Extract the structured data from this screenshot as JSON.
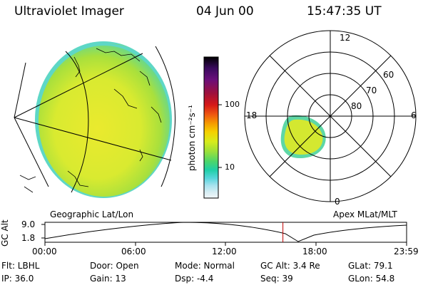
{
  "header": {
    "instrument": "Ultraviolet Imager",
    "date": "04 Jun 00",
    "time": "15:47:35 UT"
  },
  "colorbar": {
    "unit_label": "photon cm⁻²s⁻¹",
    "ticks": [
      "100",
      "10"
    ],
    "colors": [
      "#000000",
      "#3a0a5e",
      "#6a0f7a",
      "#a0103a",
      "#d61818",
      "#ef5a10",
      "#f59a00",
      "#f5d000",
      "#d7ec1c",
      "#9be03a",
      "#4cd66a",
      "#1fcfa6",
      "#58d6dc",
      "#a6e2ee",
      "#d8eef4",
      "#f2f7f9"
    ]
  },
  "panels": {
    "geo_label": "Geographic Lat/Lon",
    "polar_label": "Apex MLat/MLT",
    "mlt_labels": {
      "top": "12",
      "left": "18",
      "right": "6",
      "bottom": "0"
    },
    "mlat_labels": [
      "60",
      "70",
      "80"
    ]
  },
  "timeline": {
    "ylabel": "GC Alt",
    "ymax": "9.0",
    "ymin": "1.8",
    "ticks": [
      "00:00",
      "06:00",
      "12:00",
      "18:00",
      "23:59"
    ],
    "current_time_fraction": 0.658
  },
  "info": {
    "flt": "Flt: LBHL",
    "ip": "IP: 36.0",
    "door": "Door: Open",
    "gain": "Gain: 13",
    "mode": "Mode: Normal",
    "dsp": "Dsp:   -4.4",
    "gcalt": "GC Alt: 3.4 Re",
    "seq": "Seq: 39",
    "glat": "GLat:  79.1",
    "glon": "GLon:  54.8"
  }
}
